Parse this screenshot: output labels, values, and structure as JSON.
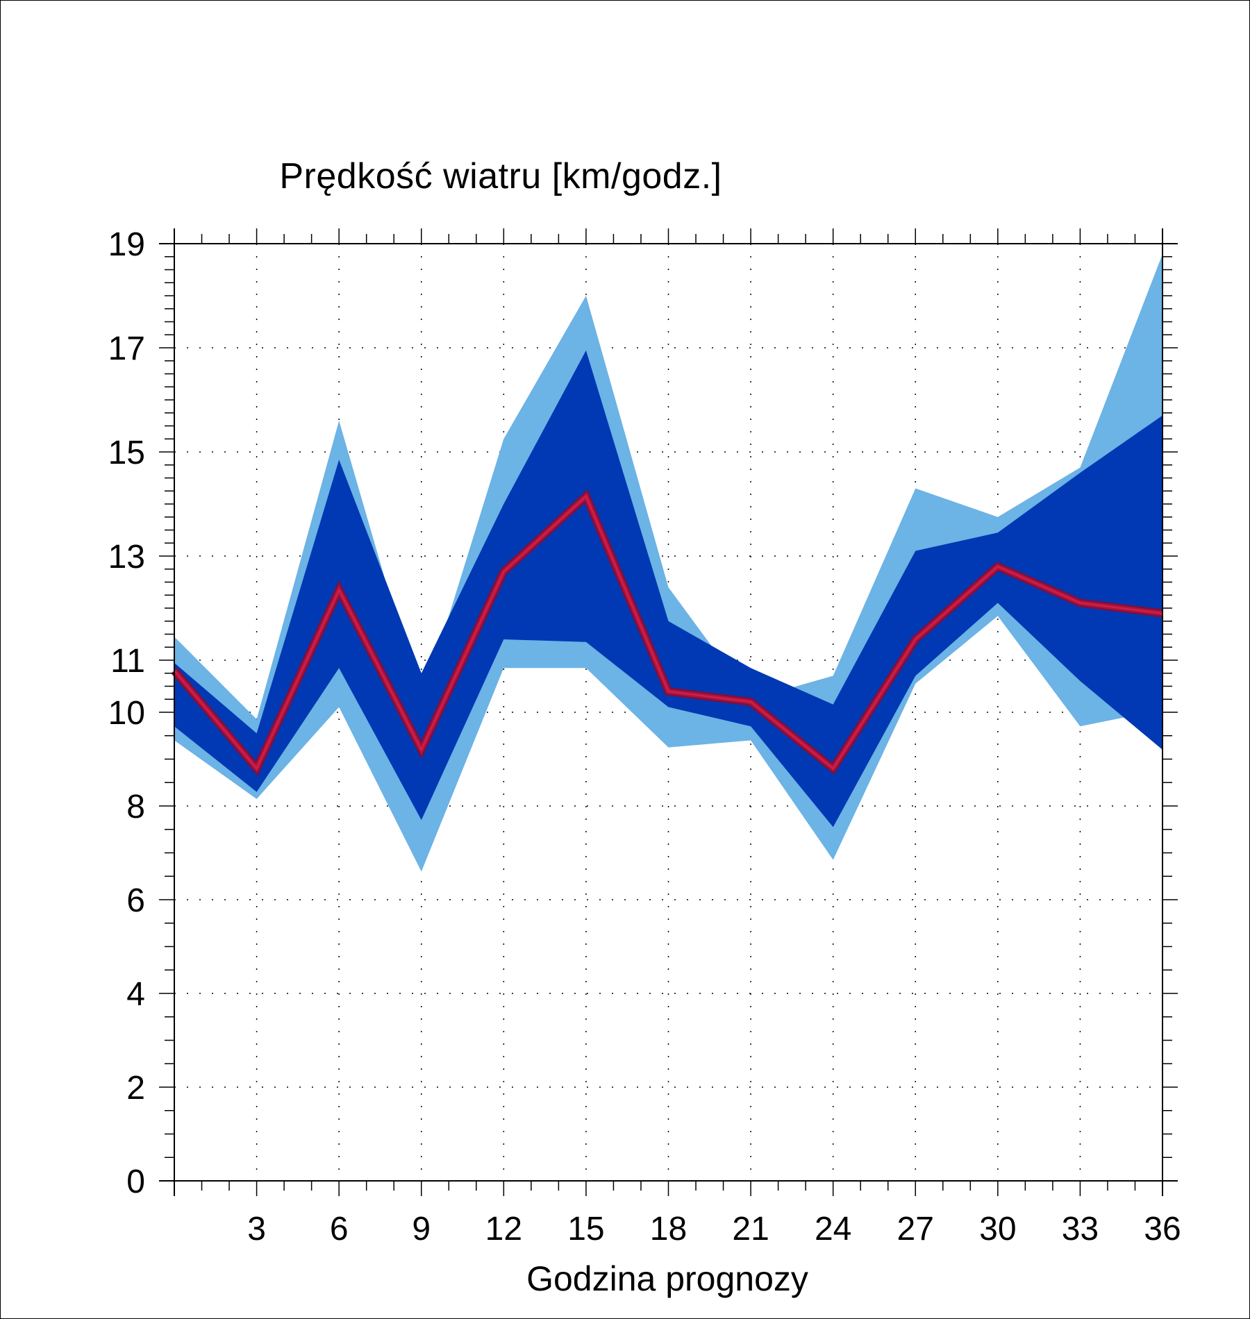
{
  "chart_data": {
    "type": "area",
    "title": "Prędkość wiatru [km/godz.]",
    "xlabel": "Godzina prognozy",
    "ylabel": "",
    "x": [
      0,
      3,
      6,
      9,
      12,
      15,
      18,
      21,
      24,
      27,
      30,
      33,
      36
    ],
    "xlim": [
      0,
      36
    ],
    "x_ticks": [
      "3",
      "6",
      "9",
      "12",
      "15",
      "18",
      "21",
      "24",
      "27",
      "30",
      "33",
      "36"
    ],
    "y_ticks": [
      "0",
      "2",
      "4",
      "6",
      "8",
      "10",
      "11",
      "13",
      "15",
      "17",
      "19"
    ],
    "y_scale": "piecewise: 0–10 step 2, 10–19 step 2 (expanded above 10)",
    "grid": true,
    "series": [
      {
        "role": "outer_band",
        "color": "#6cb3e6",
        "upper": [
          11.45,
          9.85,
          15.6,
          10.15,
          15.25,
          18.0,
          12.4,
          10.25,
          10.7,
          14.3,
          13.75,
          14.7,
          18.8
        ],
        "lower": [
          9.4,
          8.15,
          10.1,
          6.6,
          10.85,
          10.85,
          9.25,
          9.4,
          6.85,
          10.55,
          11.85,
          9.7,
          10.05
        ]
      },
      {
        "role": "inner_band",
        "color": "#0039b3",
        "upper": [
          10.95,
          9.55,
          14.85,
          10.75,
          14.0,
          16.95,
          11.75,
          10.85,
          10.15,
          13.1,
          13.45,
          14.6,
          15.7
        ],
        "lower": [
          9.7,
          8.3,
          10.85,
          7.7,
          11.4,
          11.35,
          10.1,
          9.7,
          7.55,
          10.7,
          12.1,
          10.6,
          9.2
        ]
      },
      {
        "role": "median_line",
        "color": "#b0143c",
        "values": [
          10.8,
          8.8,
          12.35,
          9.2,
          12.7,
          14.15,
          10.4,
          10.2,
          8.8,
          11.4,
          12.8,
          12.1,
          11.9
        ]
      }
    ]
  }
}
